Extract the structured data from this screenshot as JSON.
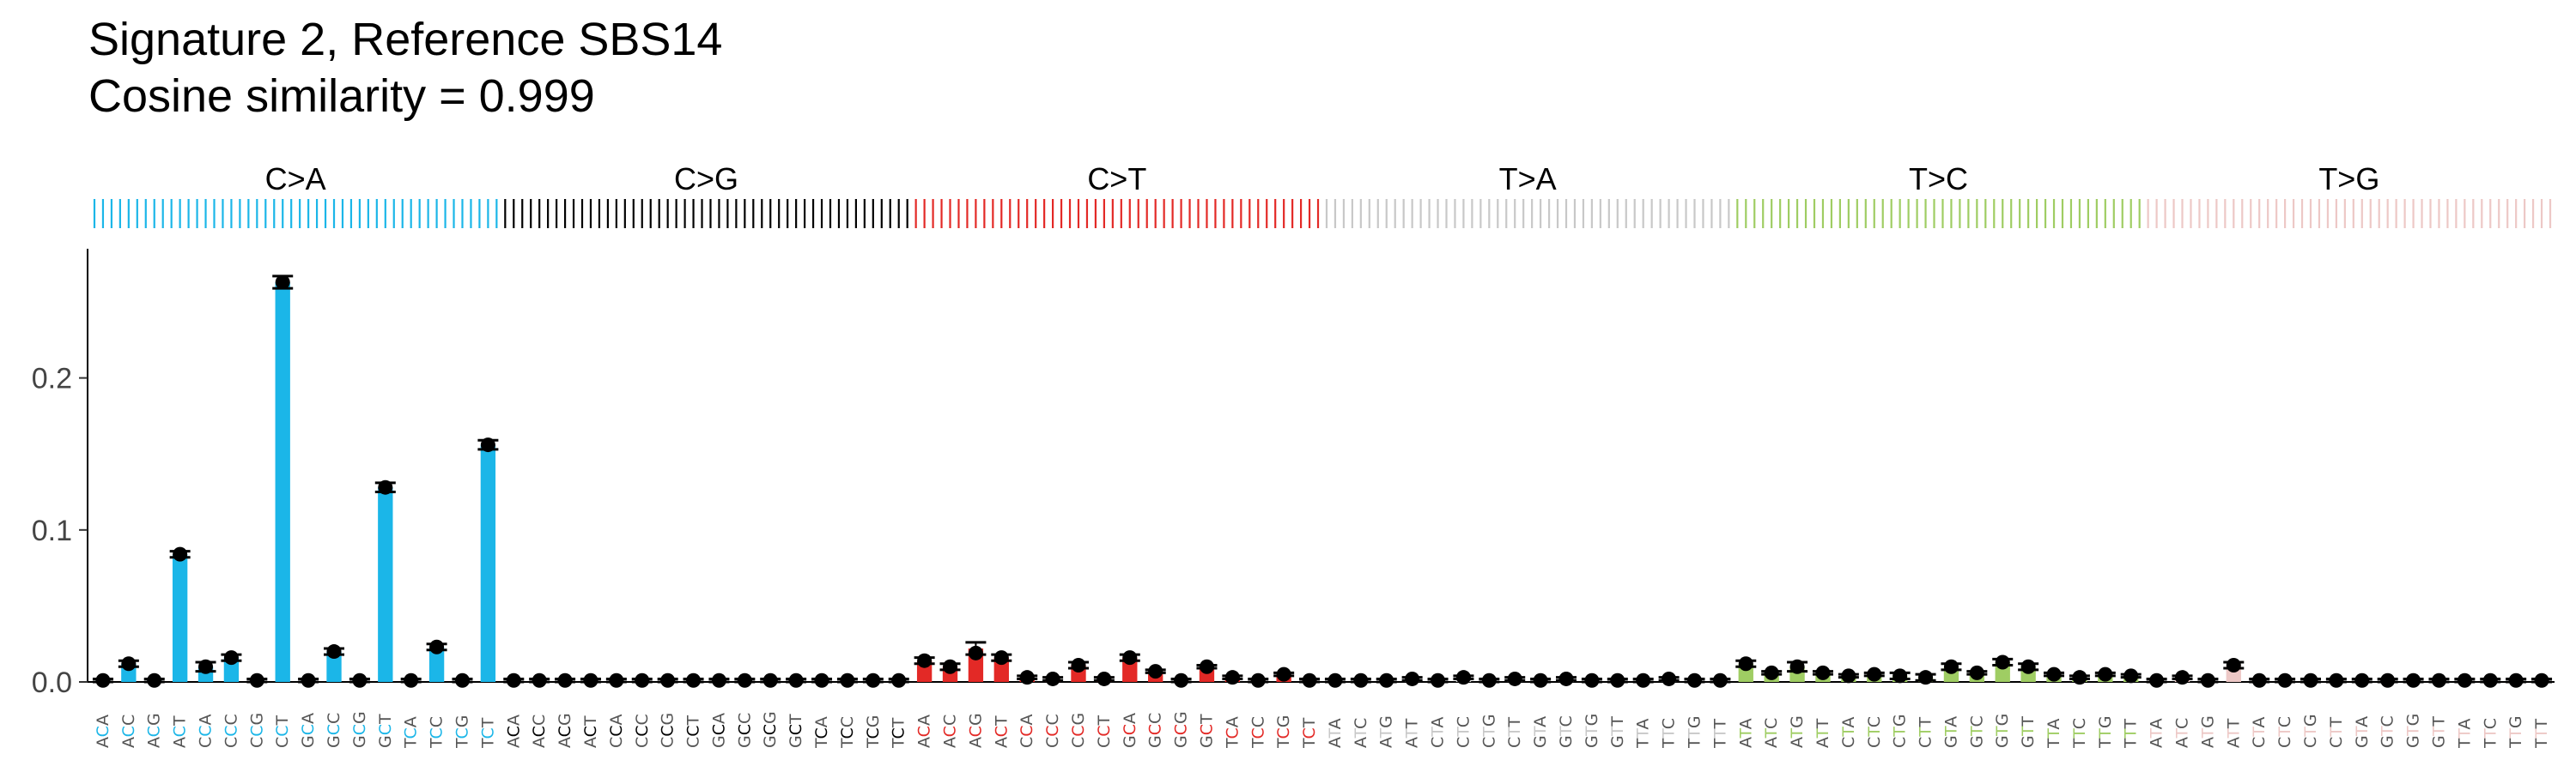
{
  "title_line1": "Signature 2, Reference SBS14",
  "title_line2": "Cosine similarity = 0.999",
  "chart_data": {
    "type": "bar",
    "groups": [
      {
        "label": "C>A",
        "color": "#1BB6E8"
      },
      {
        "label": "C>G",
        "color": "#000000"
      },
      {
        "label": "C>T",
        "color": "#E32926"
      },
      {
        "label": "T>A",
        "color": "#C8C8C8"
      },
      {
        "label": "T>C",
        "color": "#9FCD63"
      },
      {
        "label": "T>G",
        "color": "#EDC8C6"
      }
    ],
    "contexts_C": [
      "ACA",
      "ACC",
      "ACG",
      "ACT",
      "CCA",
      "CCC",
      "CCG",
      "CCT",
      "GCA",
      "GCC",
      "GCG",
      "GCT",
      "TCA",
      "TCC",
      "TCG",
      "TCT"
    ],
    "contexts_T": [
      "ATA",
      "ATC",
      "ATG",
      "ATT",
      "CTA",
      "CTC",
      "CTG",
      "CTT",
      "GTA",
      "GTC",
      "GTG",
      "GTT",
      "TTA",
      "TTC",
      "TTG",
      "TTT"
    ],
    "values": [
      0.001,
      0.012,
      0.001,
      0.084,
      0.01,
      0.016,
      0.001,
      0.263,
      0.001,
      0.02,
      0.001,
      0.128,
      0.001,
      0.023,
      0.001,
      0.156,
      0.001,
      0.001,
      0.001,
      0.001,
      0.001,
      0.001,
      0.001,
      0.001,
      0.001,
      0.001,
      0.001,
      0.001,
      0.001,
      0.001,
      0.001,
      0.001,
      0.014,
      0.01,
      0.022,
      0.016,
      0.003,
      0.002,
      0.011,
      0.002,
      0.016,
      0.007,
      0.001,
      0.01,
      0.003,
      0.001,
      0.005,
      0.001,
      0.001,
      0.001,
      0.001,
      0.002,
      0.001,
      0.003,
      0.001,
      0.002,
      0.001,
      0.002,
      0.001,
      0.001,
      0.001,
      0.002,
      0.001,
      0.001,
      0.012,
      0.006,
      0.01,
      0.006,
      0.004,
      0.005,
      0.004,
      0.003,
      0.01,
      0.006,
      0.013,
      0.01,
      0.005,
      0.003,
      0.005,
      0.004,
      0.001,
      0.003,
      0.001,
      0.011,
      0.001,
      0.001,
      0.001,
      0.001,
      0.001,
      0.001,
      0.001,
      0.001,
      0.001,
      0.001,
      0.001,
      0.001
    ],
    "reference_points": [
      0.001,
      0.012,
      0.001,
      0.084,
      0.01,
      0.016,
      0.001,
      0.263,
      0.001,
      0.02,
      0.001,
      0.128,
      0.001,
      0.023,
      0.001,
      0.156,
      0.001,
      0.001,
      0.001,
      0.001,
      0.001,
      0.001,
      0.001,
      0.001,
      0.001,
      0.001,
      0.001,
      0.001,
      0.001,
      0.001,
      0.001,
      0.001,
      0.014,
      0.01,
      0.019,
      0.016,
      0.003,
      0.002,
      0.011,
      0.002,
      0.016,
      0.007,
      0.001,
      0.01,
      0.003,
      0.001,
      0.005,
      0.001,
      0.001,
      0.001,
      0.001,
      0.002,
      0.001,
      0.003,
      0.001,
      0.002,
      0.001,
      0.002,
      0.001,
      0.001,
      0.001,
      0.002,
      0.001,
      0.001,
      0.012,
      0.006,
      0.01,
      0.006,
      0.004,
      0.005,
      0.004,
      0.003,
      0.01,
      0.006,
      0.013,
      0.01,
      0.005,
      0.003,
      0.005,
      0.004,
      0.001,
      0.003,
      0.001,
      0.011,
      0.001,
      0.001,
      0.001,
      0.001,
      0.001,
      0.001,
      0.001,
      0.001,
      0.001,
      0.001,
      0.001,
      0.001
    ],
    "error": [
      0.001,
      0.002,
      0.001,
      0.002,
      0.003,
      0.002,
      0.001,
      0.004,
      0.001,
      0.002,
      0.001,
      0.003,
      0.001,
      0.002,
      0.001,
      0.003,
      0.001,
      0.001,
      0.001,
      0.001,
      0.001,
      0.001,
      0.001,
      0.001,
      0.001,
      0.001,
      0.001,
      0.001,
      0.001,
      0.001,
      0.001,
      0.001,
      0.002,
      0.002,
      0.004,
      0.002,
      0.001,
      0.001,
      0.002,
      0.001,
      0.002,
      0.001,
      0.001,
      0.001,
      0.001,
      0.001,
      0.001,
      0.001,
      0.001,
      0.001,
      0.001,
      0.001,
      0.001,
      0.001,
      0.001,
      0.001,
      0.001,
      0.001,
      0.001,
      0.001,
      0.001,
      0.001,
      0.001,
      0.001,
      0.002,
      0.001,
      0.003,
      0.001,
      0.001,
      0.001,
      0.002,
      0.002,
      0.002,
      0.001,
      0.002,
      0.002,
      0.001,
      0.001,
      0.001,
      0.001,
      0.001,
      0.001,
      0.001,
      0.002,
      0.001,
      0.001,
      0.001,
      0.001,
      0.001,
      0.001,
      0.001,
      0.001,
      0.001,
      0.001,
      0.001,
      0.001
    ],
    "yticks": [
      0.0,
      0.1,
      0.2
    ],
    "ytick_labels": [
      "0.0",
      "0.1",
      "0.2"
    ],
    "ylim": [
      0,
      0.285
    ],
    "grid": false,
    "xlabel": "",
    "ylabel": ""
  }
}
